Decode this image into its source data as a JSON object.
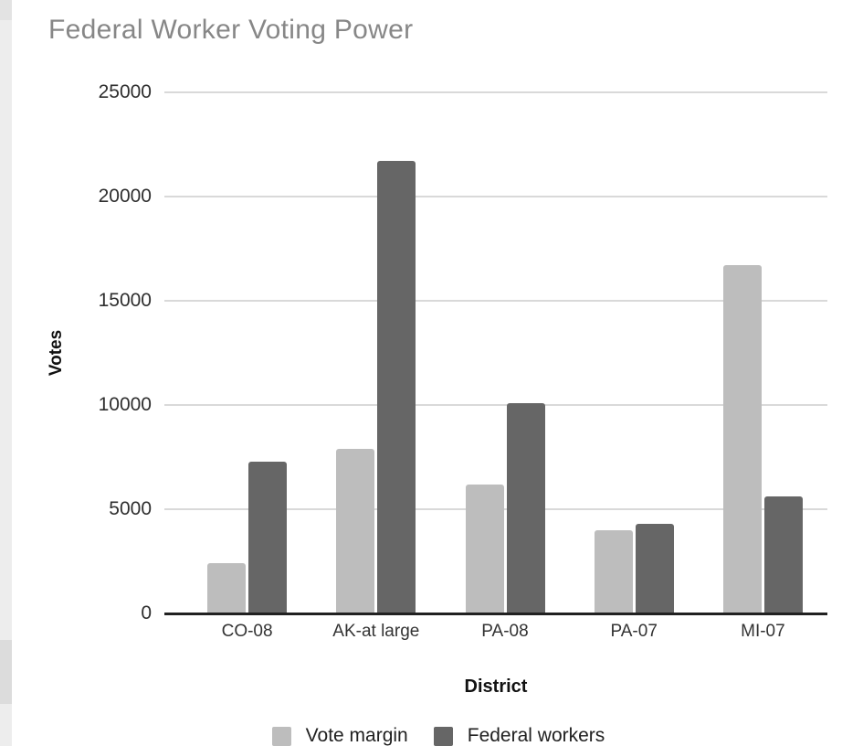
{
  "page": {
    "background": "#ffffff",
    "left_strip_color": "#ededed"
  },
  "chart_data": {
    "type": "bar",
    "title": "Federal Worker Voting Power",
    "xlabel": "District",
    "ylabel": "Votes",
    "categories": [
      "CO-08",
      "AK-at large",
      "PA-08",
      "PA-07",
      "MI-07"
    ],
    "series": [
      {
        "name": "Vote margin",
        "color": "#bdbdbd",
        "values": [
          2400,
          7900,
          6200,
          4000,
          16700
        ]
      },
      {
        "name": "Federal workers",
        "color": "#666666",
        "values": [
          7300,
          21700,
          10100,
          4300,
          5600
        ]
      }
    ],
    "ylim": [
      0,
      25000
    ],
    "yticks": [
      25000,
      20000,
      15000,
      10000,
      5000,
      0
    ],
    "grid": true,
    "legend_position": "bottom",
    "colors": {
      "title": "#878787",
      "gridline": "#d9d9d9",
      "axis_line": "#212121",
      "y_tick_label": "#2e2e2e",
      "x_tick_label": "#333333",
      "axis_title": "#111111"
    }
  }
}
